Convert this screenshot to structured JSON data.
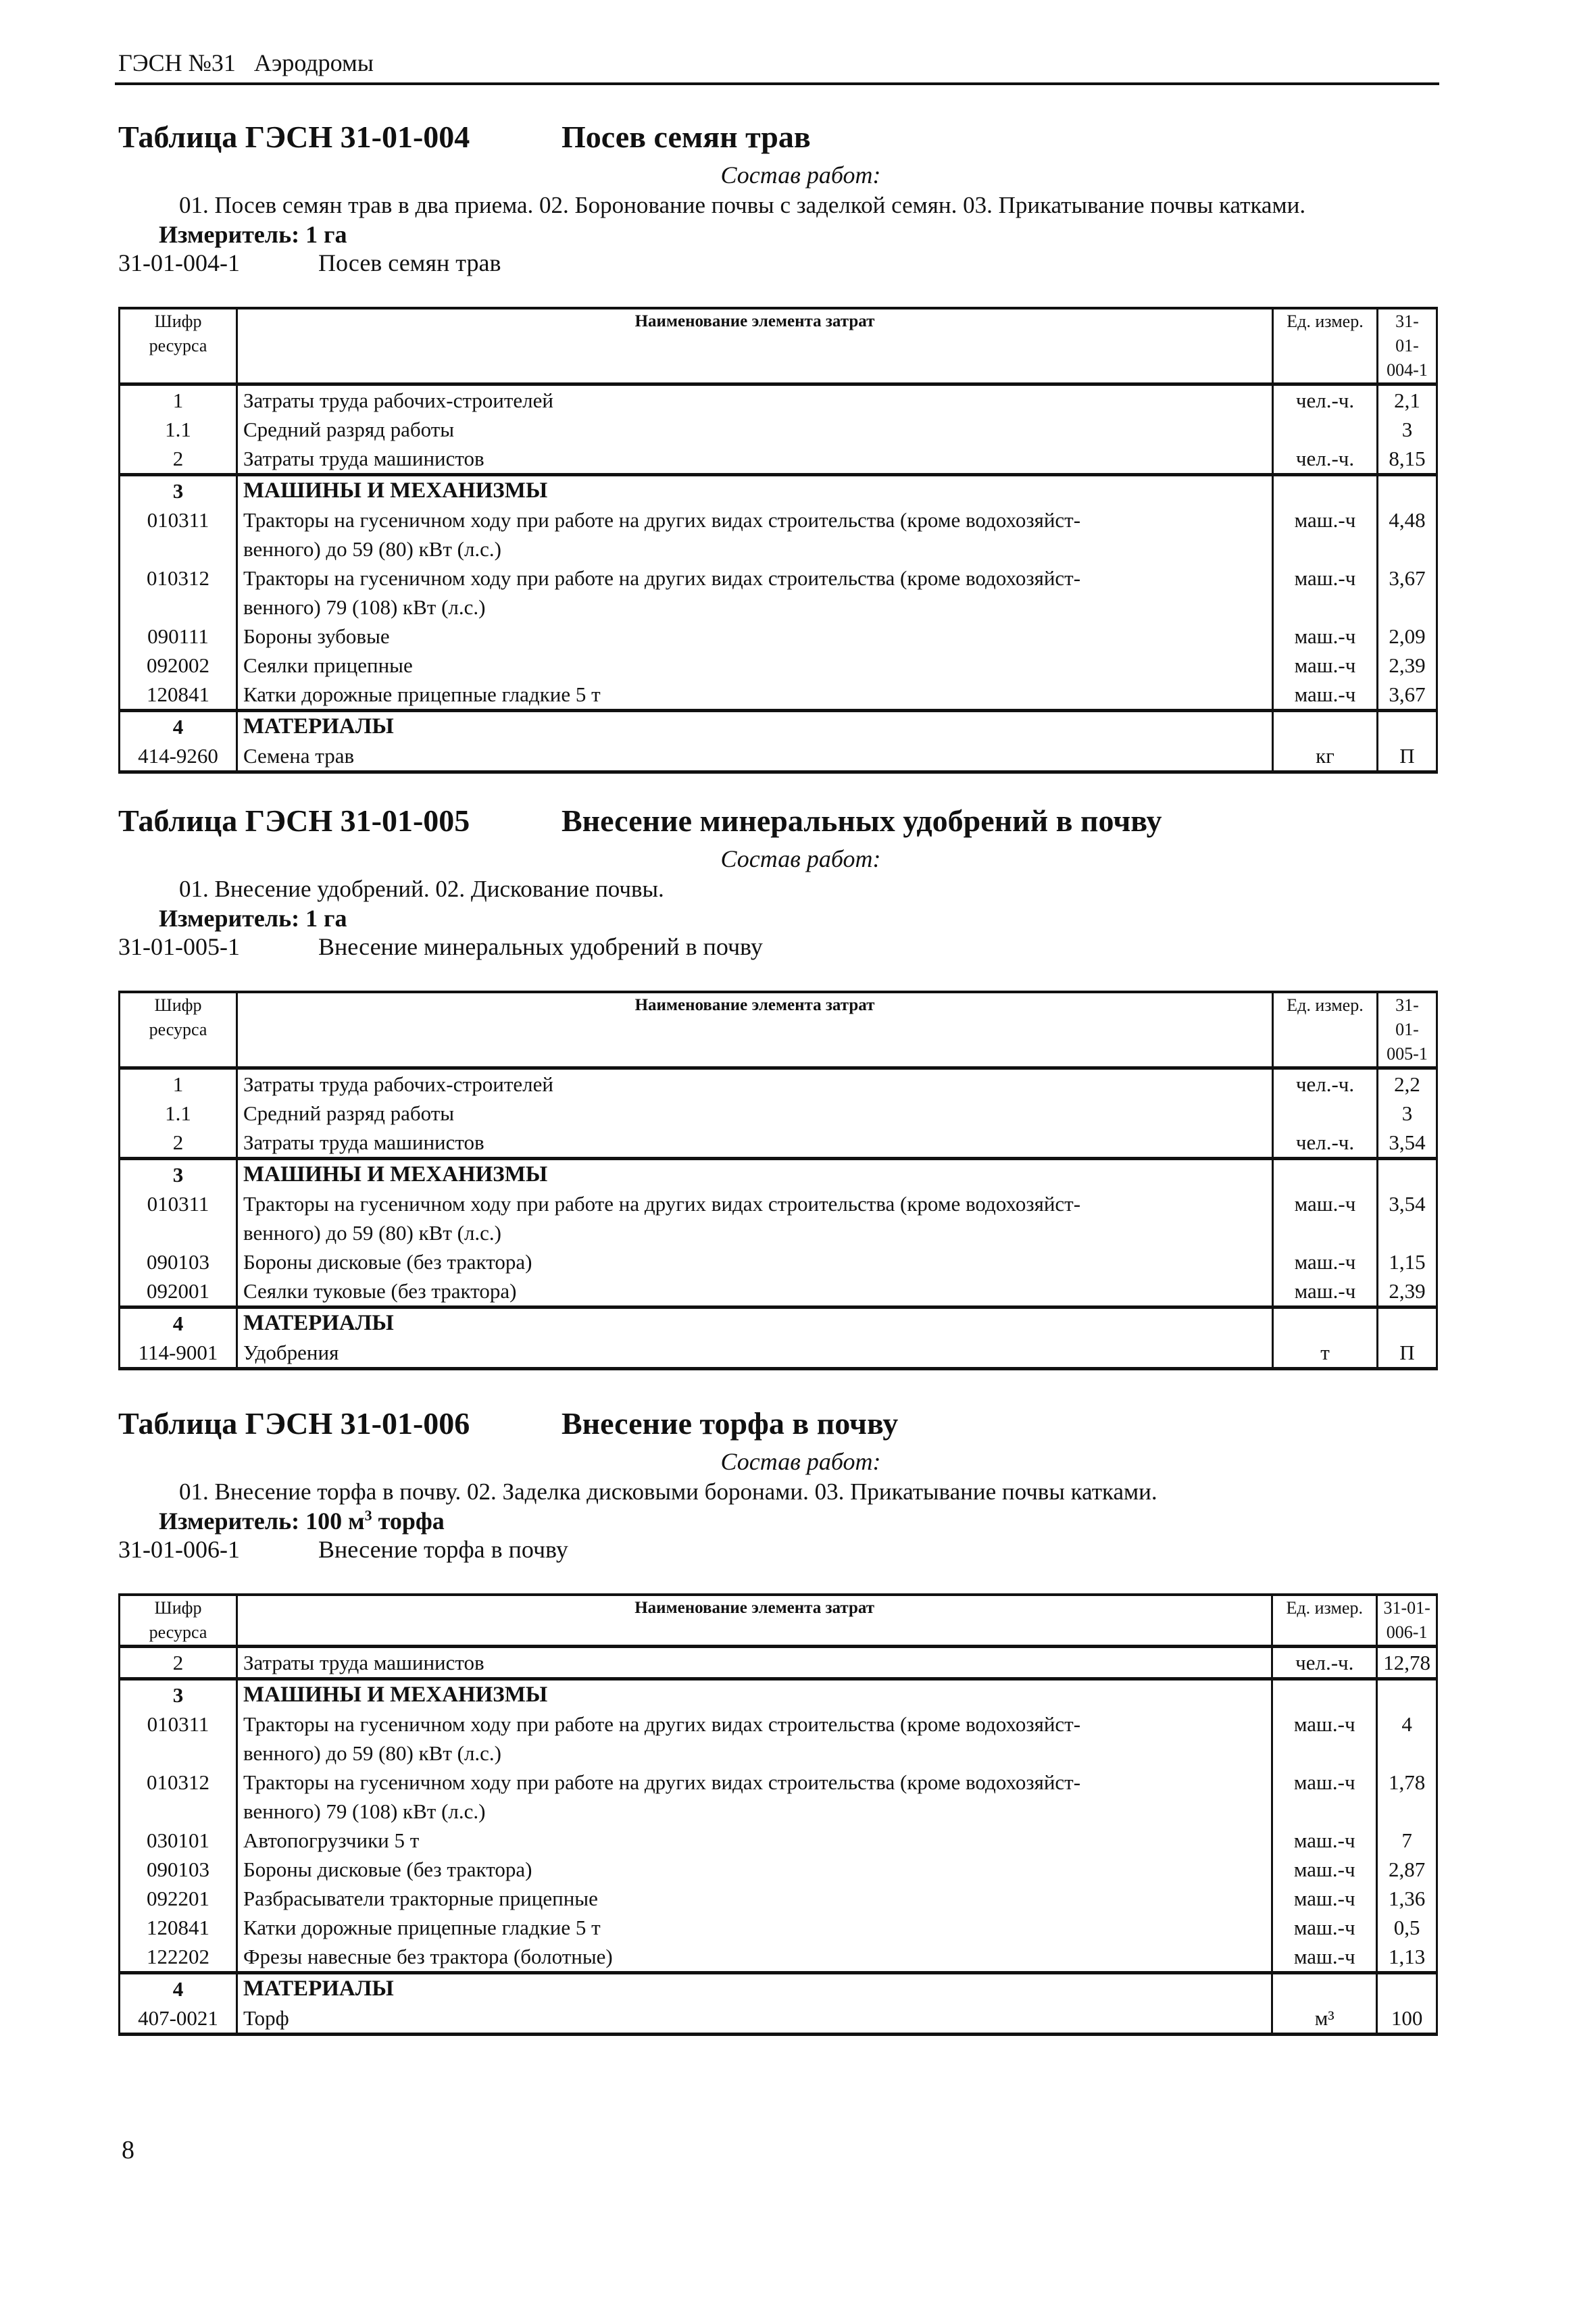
{
  "running_header": "ГЭСН №31   Аэродромы",
  "page_number": "8",
  "header_labels": {
    "code": "Шифр\nресурса",
    "name": "Наименование элемента затрат",
    "unit": "Ед. измер."
  },
  "tables": [
    {
      "code": "Таблица ГЭСН 31-01-004",
      "title": "Посев семян трав",
      "sostav_label": "Состав работ:",
      "works": "01. Посев семян трав в два приема. 02. Боронование почвы с заделкой семян. 03. Прикатывание почвы катками.",
      "izmeritel": "Измеритель: 1 га",
      "norm_code": "31-01-004-1",
      "norm_name": "Посев семян трав",
      "value_header": "31-01-\n004-1",
      "groups": [
        [
          {
            "code": "1",
            "name": "Затраты труда рабочих-строителей",
            "unit": "чел.-ч.",
            "value": "2,1"
          },
          {
            "code": "1.1",
            "name": "Средний разряд работы",
            "unit": "",
            "value": "3"
          },
          {
            "code": "2",
            "name": "Затраты труда машинистов",
            "unit": "чел.-ч.",
            "value": "8,15"
          }
        ],
        [
          {
            "code": "3",
            "name": "МАШИНЫ И МЕХАНИЗМЫ",
            "unit": "",
            "value": "",
            "section": true
          },
          {
            "code": "010311",
            "name": "Тракторы на гусеничном ходу при работе на других видах строительства (кроме водохозяйст-\nвенного) до 59 (80) кВт (л.с.)",
            "unit": "маш.-ч",
            "value": "4,48"
          },
          {
            "code": "010312",
            "name": "Тракторы на гусеничном ходу при работе на других видах строительства (кроме водохозяйст-\nвенного) 79 (108) кВт (л.с.)",
            "unit": "маш.-ч",
            "value": "3,67"
          },
          {
            "code": "090111",
            "name": "Бороны зубовые",
            "unit": "маш.-ч",
            "value": "2,09"
          },
          {
            "code": "092002",
            "name": "Сеялки прицепные",
            "unit": "маш.-ч",
            "value": "2,39"
          },
          {
            "code": "120841",
            "name": "Катки дорожные прицепные гладкие 5 т",
            "unit": "маш.-ч",
            "value": "3,67"
          }
        ],
        [
          {
            "code": "4",
            "name": "МАТЕРИАЛЫ",
            "unit": "",
            "value": "",
            "section": true
          },
          {
            "code": "414-9260",
            "name": "Семена трав",
            "unit": "кг",
            "value": "П"
          }
        ]
      ]
    },
    {
      "code": "Таблица ГЭСН 31-01-005",
      "title": "Внесение минеральных удобрений в почву",
      "sostav_label": "Состав работ:",
      "works": "01. Внесение удобрений. 02. Дискование почвы.",
      "izmeritel": "Измеритель: 1 га",
      "norm_code": "31-01-005-1",
      "norm_name": "Внесение минеральных удобрений в почву",
      "value_header": "31-01-\n005-1",
      "groups": [
        [
          {
            "code": "1",
            "name": "Затраты труда рабочих-строителей",
            "unit": "чел.-ч.",
            "value": "2,2"
          },
          {
            "code": "1.1",
            "name": "Средний разряд работы",
            "unit": "",
            "value": "3"
          },
          {
            "code": "2",
            "name": "Затраты труда машинистов",
            "unit": "чел.-ч.",
            "value": "3,54"
          }
        ],
        [
          {
            "code": "3",
            "name": "МАШИНЫ И МЕХАНИЗМЫ",
            "unit": "",
            "value": "",
            "section": true
          },
          {
            "code": "010311",
            "name": "Тракторы на гусеничном ходу при работе на других видах строительства (кроме водохозяйст-\nвенного) до 59 (80) кВт (л.с.)",
            "unit": "маш.-ч",
            "value": "3,54"
          },
          {
            "code": "090103",
            "name": "Бороны дисковые (без трактора)",
            "unit": "маш.-ч",
            "value": "1,15"
          },
          {
            "code": "092001",
            "name": "Сеялки туковые (без трактора)",
            "unit": "маш.-ч",
            "value": "2,39"
          }
        ],
        [
          {
            "code": "4",
            "name": "МАТЕРИАЛЫ",
            "unit": "",
            "value": "",
            "section": true
          },
          {
            "code": "114-9001",
            "name": "Удобрения",
            "unit": "т",
            "value": "П"
          }
        ]
      ]
    },
    {
      "code": "Таблица ГЭСН 31-01-006",
      "title": "Внесение торфа в почву",
      "sostav_label": "Состав работ:",
      "works": "01. Внесение торфа в почву. 02. Заделка дисковыми боронами. 03. Прикатывание почвы катками.",
      "izmeritel": "Измеритель: 100 м",
      "izmeritel_sup": "3",
      "izmeritel_tail": " торфа",
      "norm_code": "31-01-006-1",
      "norm_name": "Внесение торфа в почву",
      "value_header": "31-01-\n006-1",
      "groups": [
        [
          {
            "code": "2",
            "name": "Затраты труда машинистов",
            "unit": "чел.-ч.",
            "value": "12,78"
          }
        ],
        [
          {
            "code": "3",
            "name": "МАШИНЫ И МЕХАНИЗМЫ",
            "unit": "",
            "value": "",
            "section": true
          },
          {
            "code": "010311",
            "name": "Тракторы на гусеничном ходу при работе на других видах строительства (кроме водохозяйст-\nвенного) до 59 (80) кВт (л.с.)",
            "unit": "маш.-ч",
            "value": "4"
          },
          {
            "code": "010312",
            "name": "Тракторы на гусеничном ходу при работе на других видах строительства (кроме водохозяйст-\nвенного) 79 (108) кВт (л.с.)",
            "unit": "маш.-ч",
            "value": "1,78"
          },
          {
            "code": "030101",
            "name": "Автопогрузчики 5 т",
            "unit": "маш.-ч",
            "value": "7"
          },
          {
            "code": "090103",
            "name": "Бороны дисковые (без трактора)",
            "unit": "маш.-ч",
            "value": "2,87"
          },
          {
            "code": "092201",
            "name": "Разбрасыватели тракторные прицепные",
            "unit": "маш.-ч",
            "value": "1,36"
          },
          {
            "code": "120841",
            "name": "Катки дорожные прицепные гладкие 5 т",
            "unit": "маш.-ч",
            "value": "0,5"
          },
          {
            "code": "122202",
            "name": "Фрезы навесные без трактора (болотные)",
            "unit": "маш.-ч",
            "value": "1,13"
          }
        ],
        [
          {
            "code": "4",
            "name": "МАТЕРИАЛЫ",
            "unit": "",
            "value": "",
            "section": true
          },
          {
            "code": "407-0021",
            "name": "Торф",
            "unit": "м³",
            "value": "100"
          }
        ]
      ]
    }
  ]
}
